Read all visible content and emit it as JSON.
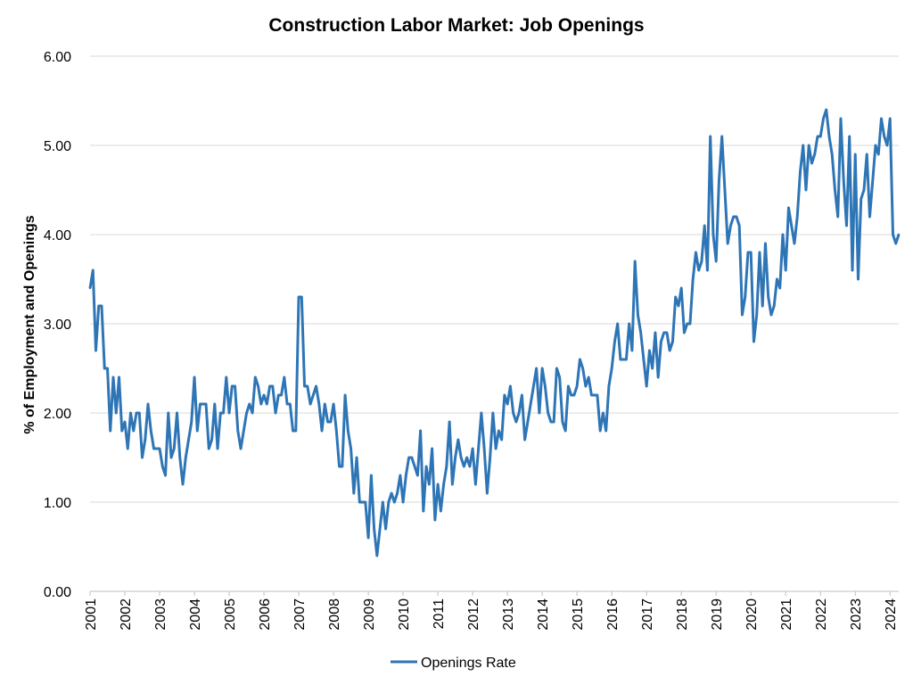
{
  "chart_data": {
    "type": "line",
    "title": "Construction Labor Market: Job Openings",
    "ylabel": "% of Employment and Openings",
    "xlabel": "",
    "ylim": [
      0,
      6
    ],
    "yticks": [
      "0.00",
      "1.00",
      "2.00",
      "3.00",
      "4.00",
      "5.00",
      "6.00"
    ],
    "xticks": [
      "2001",
      "2002",
      "2003",
      "2004",
      "2005",
      "2006",
      "2007",
      "2008",
      "2009",
      "2010",
      "2011",
      "2012",
      "2013",
      "2014",
      "2015",
      "2016",
      "2017",
      "2018",
      "2019",
      "2020",
      "2021",
      "2022",
      "2023",
      "2024"
    ],
    "x_start": "2001-01",
    "x_frequency": "monthly",
    "grid": true,
    "legend_position": "bottom",
    "colors": {
      "line": "#2e75b6"
    },
    "series": [
      {
        "name": "Openings Rate",
        "values": [
          3.4,
          3.6,
          2.7,
          3.2,
          3.2,
          2.5,
          2.5,
          1.8,
          2.4,
          2.0,
          2.4,
          1.8,
          1.9,
          1.6,
          2.0,
          1.8,
          2.0,
          2.0,
          1.5,
          1.7,
          2.1,
          1.8,
          1.6,
          1.6,
          1.6,
          1.4,
          1.3,
          2.0,
          1.5,
          1.6,
          2.0,
          1.5,
          1.2,
          1.5,
          1.7,
          1.9,
          2.4,
          1.8,
          2.1,
          2.1,
          2.1,
          1.6,
          1.7,
          2.1,
          1.6,
          2.0,
          2.0,
          2.4,
          2.0,
          2.3,
          2.3,
          1.8,
          1.6,
          1.8,
          2.0,
          2.1,
          2.0,
          2.4,
          2.3,
          2.1,
          2.2,
          2.1,
          2.3,
          2.3,
          2.0,
          2.2,
          2.2,
          2.4,
          2.1,
          2.1,
          1.8,
          1.8,
          3.3,
          3.3,
          2.3,
          2.3,
          2.1,
          2.2,
          2.3,
          2.1,
          1.8,
          2.1,
          1.9,
          1.9,
          2.1,
          1.8,
          1.4,
          1.4,
          2.2,
          1.8,
          1.6,
          1.1,
          1.5,
          1.0,
          1.0,
          1.0,
          0.6,
          1.3,
          0.7,
          0.4,
          0.7,
          1.0,
          0.7,
          1.0,
          1.1,
          1.0,
          1.1,
          1.3,
          1.0,
          1.3,
          1.5,
          1.5,
          1.4,
          1.3,
          1.8,
          0.9,
          1.4,
          1.2,
          1.6,
          0.8,
          1.2,
          0.9,
          1.2,
          1.4,
          1.9,
          1.2,
          1.5,
          1.7,
          1.5,
          1.4,
          1.5,
          1.4,
          1.6,
          1.2,
          1.6,
          2.0,
          1.6,
          1.1,
          1.5,
          2.0,
          1.6,
          1.8,
          1.7,
          2.2,
          2.1,
          2.3,
          2.0,
          1.9,
          2.0,
          2.2,
          1.7,
          1.9,
          2.1,
          2.3,
          2.5,
          2.0,
          2.5,
          2.3,
          2.0,
          1.9,
          1.9,
          2.5,
          2.4,
          1.9,
          1.8,
          2.3,
          2.2,
          2.2,
          2.3,
          2.6,
          2.5,
          2.3,
          2.4,
          2.2,
          2.2,
          2.2,
          1.8,
          2.0,
          1.8,
          2.3,
          2.5,
          2.8,
          3.0,
          2.6,
          2.6,
          2.6,
          3.0,
          2.7,
          3.7,
          3.1,
          2.9,
          2.6,
          2.3,
          2.7,
          2.5,
          2.9,
          2.4,
          2.8,
          2.9,
          2.9,
          2.7,
          2.8,
          3.3,
          3.2,
          3.4,
          2.9,
          3.0,
          3.0,
          3.5,
          3.8,
          3.6,
          3.7,
          4.1,
          3.6,
          5.1,
          4.0,
          3.7,
          4.6,
          5.1,
          4.5,
          3.9,
          4.1,
          4.2,
          4.2,
          4.1,
          3.1,
          3.3,
          3.8,
          3.8,
          2.8,
          3.1,
          3.8,
          3.2,
          3.9,
          3.3,
          3.1,
          3.2,
          3.5,
          3.4,
          4.0,
          3.6,
          4.3,
          4.1,
          3.9,
          4.2,
          4.7,
          5.0,
          4.5,
          5.0,
          4.8,
          4.9,
          5.1,
          5.1,
          5.3,
          5.4,
          5.1,
          4.9,
          4.5,
          4.2,
          5.3,
          4.6,
          4.1,
          5.1,
          3.6,
          4.9,
          3.5,
          4.4,
          4.5,
          4.9,
          4.2,
          4.6,
          5.0,
          4.9,
          5.3,
          5.1,
          5.0,
          5.3,
          4.0,
          3.9,
          4.0
        ]
      }
    ]
  }
}
